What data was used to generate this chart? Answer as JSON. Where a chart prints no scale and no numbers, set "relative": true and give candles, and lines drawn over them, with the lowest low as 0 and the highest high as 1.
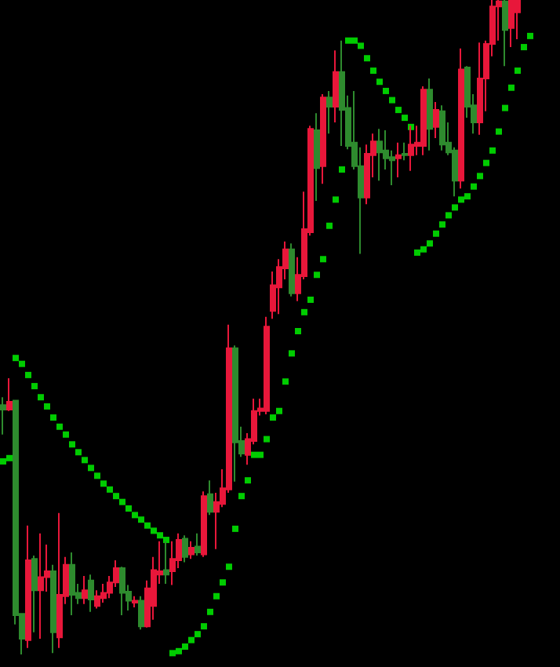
{
  "chart_data": {
    "type": "candlestick",
    "relative": true,
    "tick_labels": false,
    "grid": false,
    "marker": "square",
    "categories": [
      null,
      null,
      null,
      null,
      null,
      null,
      null,
      null,
      null,
      null,
      null,
      null,
      null,
      null,
      null,
      null,
      null,
      null,
      null,
      null,
      null,
      null,
      null,
      null,
      null,
      null,
      null,
      null,
      null,
      null,
      null,
      null,
      null,
      null,
      null,
      null,
      null,
      null,
      null,
      null,
      null,
      null,
      null,
      null,
      null,
      null,
      null,
      null,
      null,
      null,
      null,
      null,
      null,
      null,
      null,
      null,
      null,
      null,
      null,
      null,
      null,
      null,
      null,
      null,
      null,
      null,
      null,
      null,
      null,
      null,
      null,
      null,
      null,
      null,
      null,
      null,
      null,
      null,
      null,
      null,
      null,
      null,
      null,
      null,
      null
    ],
    "ohlc": [
      [
        0.381,
        0.393,
        0.336,
        0.374
      ],
      [
        0.374,
        0.422,
        0.372,
        0.386
      ],
      [
        0.388,
        0.388,
        0.046,
        0.06
      ],
      [
        0.062,
        0.062,
        0,
        0.024
      ],
      [
        0.022,
        0.197,
        0.01,
        0.144
      ],
      [
        0.146,
        0.151,
        0.034,
        0.098
      ],
      [
        0.098,
        0.185,
        0.024,
        0.118
      ],
      [
        0.118,
        0.168,
        0.096,
        0.127
      ],
      [
        0.127,
        0.137,
        0.002,
        0.034
      ],
      [
        0.026,
        0.216,
        0.01,
        0.091
      ],
      [
        0.089,
        0.149,
        0.077,
        0.137
      ],
      [
        0.137,
        0.156,
        0.06,
        0.091
      ],
      [
        0.094,
        0.108,
        0.077,
        0.086
      ],
      [
        0.086,
        0.12,
        0.077,
        0.098
      ],
      [
        0.113,
        0.122,
        0.065,
        0.084
      ],
      [
        0.074,
        0.098,
        0.07,
        0.089
      ],
      [
        0.086,
        0.108,
        0.079,
        0.094
      ],
      [
        0.094,
        0.12,
        0.086,
        0.11
      ],
      [
        0.11,
        0.144,
        0.103,
        0.132
      ],
      [
        0.132,
        0.134,
        0.06,
        0.094
      ],
      [
        0.096,
        0.106,
        0.067,
        0.082
      ],
      [
        0.079,
        0.089,
        0.072,
        0.082
      ],
      [
        0.082,
        0.089,
        0.038,
        0.043
      ],
      [
        0.043,
        0.113,
        0.041,
        0.101
      ],
      [
        0.074,
        0.149,
        0.053,
        0.129
      ],
      [
        0.122,
        0.173,
        0.108,
        0.127
      ],
      [
        0.129,
        0.173,
        0.108,
        0.122
      ],
      [
        0.127,
        0.173,
        0.106,
        0.146
      ],
      [
        0.144,
        0.185,
        0.132,
        0.175
      ],
      [
        0.177,
        0.182,
        0.141,
        0.149
      ],
      [
        0.153,
        0.173,
        0.146,
        0.163
      ],
      [
        0.165,
        0.185,
        0.151,
        0.156
      ],
      [
        0.153,
        0.249,
        0.149,
        0.242
      ],
      [
        0.245,
        0.266,
        0.213,
        0.218
      ],
      [
        0.218,
        0.247,
        0.161,
        0.233
      ],
      [
        0.23,
        0.283,
        0.225,
        0.254
      ],
      [
        0.252,
        0.504,
        0.247,
        0.468
      ],
      [
        0.468,
        0.472,
        0.264,
        0.324
      ],
      [
        0.326,
        0.348,
        0.302,
        0.307
      ],
      [
        0.305,
        0.338,
        0.29,
        0.329
      ],
      [
        0.326,
        0.391,
        0.321,
        0.372
      ],
      [
        0.372,
        0.391,
        0.365,
        0.376
      ],
      [
        0.372,
        0.516,
        0.367,
        0.501
      ],
      [
        0.525,
        0.585,
        0.513,
        0.564
      ],
      [
        0.561,
        0.604,
        0.52,
        0.592
      ],
      [
        0.59,
        0.631,
        0.573,
        0.619
      ],
      [
        0.619,
        0.628,
        0.547,
        0.552
      ],
      [
        0.552,
        0.607,
        0.54,
        0.58
      ],
      [
        0.578,
        0.707,
        0.573,
        0.65
      ],
      [
        0.645,
        0.808,
        0.64,
        0.803
      ],
      [
        0.801,
        0.827,
        0.693,
        0.743
      ],
      [
        0.746,
        0.856,
        0.719,
        0.851
      ],
      [
        0.851,
        0.861,
        0.796,
        0.837
      ],
      [
        0.837,
        0.923,
        0.813,
        0.89
      ],
      [
        0.89,
        0.938,
        0.777,
        0.832
      ],
      [
        0.835,
        0.854,
        0.772,
        0.777
      ],
      [
        0.782,
        0.861,
        0.741,
        0.746
      ],
      [
        0.746,
        0.775,
        0.612,
        0.698
      ],
      [
        0.698,
        0.779,
        0.688,
        0.765
      ],
      [
        0.763,
        0.796,
        0.729,
        0.784
      ],
      [
        0.784,
        0.803,
        0.724,
        0.767
      ],
      [
        0.77,
        0.801,
        0.741,
        0.758
      ],
      [
        0.76,
        0.77,
        0.717,
        0.755
      ],
      [
        0.758,
        0.782,
        0.729,
        0.763
      ],
      [
        0.765,
        0.782,
        0.755,
        0.763
      ],
      [
        0.763,
        0.808,
        0.739,
        0.779
      ],
      [
        0.777,
        0.808,
        0.763,
        0.782
      ],
      [
        0.777,
        0.868,
        0.763,
        0.863
      ],
      [
        0.863,
        0.88,
        0.77,
        0.803
      ],
      [
        0.806,
        0.844,
        0.789,
        0.832
      ],
      [
        0.83,
        0.839,
        0.77,
        0.779
      ],
      [
        0.782,
        0.813,
        0.763,
        0.767
      ],
      [
        0.77,
        0.775,
        0.7,
        0.724
      ],
      [
        0.724,
        0.926,
        0.712,
        0.894
      ],
      [
        0.897,
        0.899,
        0.82,
        0.837
      ],
      [
        0.839,
        0.856,
        0.796,
        0.813
      ],
      [
        0.813,
        0.935,
        0.794,
        0.88
      ],
      [
        0.88,
        0.938,
        0.83,
        0.933
      ],
      [
        0.933,
        1,
        0.914,
        0.99
      ],
      [
        0.99,
        1,
        0.938,
        0.998
      ],
      [
        0.998,
        1,
        0.899,
        0.954
      ],
      [
        0.957,
        1,
        0.928,
        1
      ],
      [
        0.981,
        1,
        0.94,
        1
      ],
      null,
      null
    ],
    "colors": [
      "#2e8b2e",
      "#e8173a",
      "#2e8b2e",
      "#2e8b2e",
      "#e8173a",
      "#2e8b2e",
      "#e8173a",
      "#e8173a",
      "#2e8b2e",
      "#e8173a",
      "#e8173a",
      "#2e8b2e",
      "#2e8b2e",
      "#e8173a",
      "#2e8b2e",
      "#e8173a",
      "#e8173a",
      "#e8173a",
      "#e8173a",
      "#2e8b2e",
      "#2e8b2e",
      "#e8173a",
      "#2e8b2e",
      "#e8173a",
      "#e8173a",
      "#e8173a",
      "#2e8b2e",
      "#e8173a",
      "#e8173a",
      "#2e8b2e",
      "#e8173a",
      "#2e8b2e",
      "#e8173a",
      "#2e8b2e",
      "#e8173a",
      "#e8173a",
      "#e8173a",
      "#2e8b2e",
      "#2e8b2e",
      "#e8173a",
      "#e8173a",
      "#e8173a",
      "#e8173a",
      "#e8173a",
      "#e8173a",
      "#e8173a",
      "#2e8b2e",
      "#e8173a",
      "#e8173a",
      "#e8173a",
      "#2e8b2e",
      "#e8173a",
      "#2e8b2e",
      "#e8173a",
      "#2e8b2e",
      "#2e8b2e",
      "#2e8b2e",
      "#2e8b2e",
      "#e8173a",
      "#e8173a",
      "#2e8b2e",
      "#2e8b2e",
      "#2e8b2e",
      "#e8173a",
      "#2e8b2e",
      "#e8173a",
      "#e8173a",
      "#e8173a",
      "#2e8b2e",
      "#e8173a",
      "#2e8b2e",
      "#2e8b2e",
      "#2e8b2e",
      "#e8173a",
      "#2e8b2e",
      "#2e8b2e",
      "#e8173a",
      "#e8173a",
      "#e8173a",
      "#e8173a",
      "#2e8b2e",
      "#e8173a",
      "#e8173a",
      null,
      null
    ],
    "series": [
      {
        "type": "scatter",
        "color": "#00ff00",
        "values": [
          0.295,
          0.3,
          0.453,
          0.444,
          0.427,
          0.41,
          0.393,
          0.379,
          0.362,
          0.348,
          0.336,
          0.321,
          0.309,
          0.297,
          0.285,
          0.273,
          0.261,
          0.252,
          0.242,
          0.233,
          0.223,
          0.213,
          0.206,
          0.197,
          0.189,
          0.182,
          0.175,
          0.002,
          0.005,
          0.012,
          0.022,
          0.031,
          0.043,
          0.065,
          0.089,
          0.11,
          0.134,
          0.192,
          0.242,
          0.266,
          0.305,
          0.305,
          0.329,
          0.362,
          0.372,
          0.417,
          0.46,
          0.494,
          0.523,
          0.542,
          0.58,
          0.604,
          0.655,
          0.695,
          0.741,
          0.938,
          0.938,
          0.93,
          0.911,
          0.892,
          0.875,
          0.861,
          0.847,
          0.832,
          0.82,
          0.806,
          0.614,
          0.619,
          0.628,
          0.643,
          0.657,
          0.671,
          0.683,
          0.695,
          0.7,
          0.715,
          0.731,
          0.751,
          0.77,
          0.799,
          0.835,
          0.866,
          0.892,
          0.928,
          0.945
        ]
      }
    ]
  }
}
